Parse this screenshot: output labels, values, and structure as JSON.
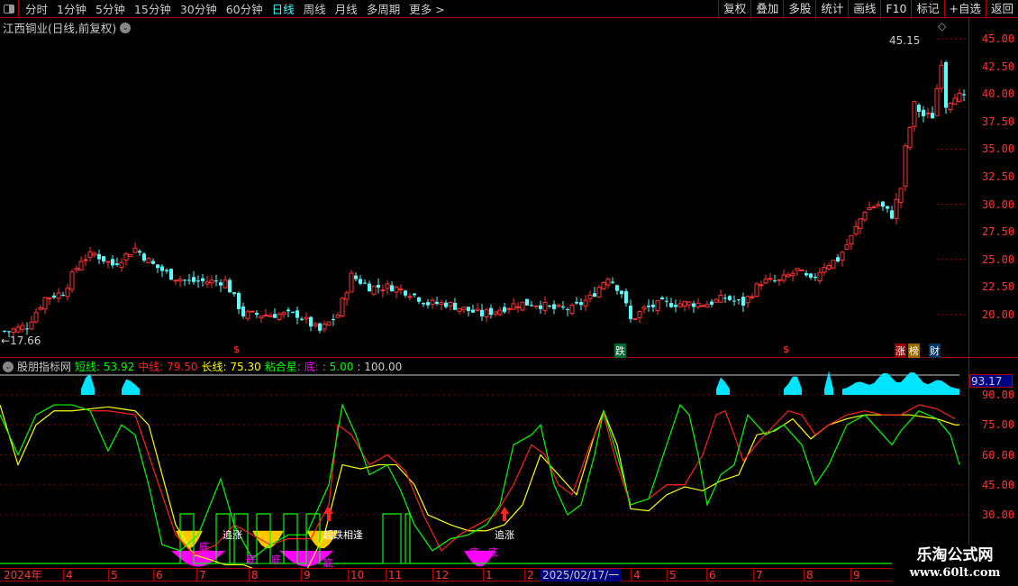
{
  "toolbar": {
    "periods": [
      "分时",
      "1分钟",
      "5分钟",
      "15分钟",
      "30分钟",
      "60分钟",
      "日线",
      "周线",
      "月线",
      "多周期",
      "更多 >"
    ],
    "active": "日线",
    "right_buttons": [
      "复权",
      "叠加",
      "多股",
      "统计",
      "画线",
      "F10",
      "标记",
      "+自选",
      "返回"
    ]
  },
  "stock": {
    "title": "江西铜业(日线,前复权)",
    "high_label": "45.15",
    "low_label": "←17.66"
  },
  "price_axis": [
    "45.00",
    "42.50",
    "40.00",
    "37.50",
    "35.00",
    "32.50",
    "30.00",
    "27.50",
    "25.00",
    "22.50",
    "20.00"
  ],
  "markers": {
    "s1": "$",
    "s2": "$",
    "die": "跌",
    "zhangbang": [
      "涨",
      "榜"
    ],
    "cai": "财"
  },
  "indicator": {
    "name": "股朋指标网",
    "short_label": "短线:",
    "short_value": "53.92",
    "mid_label": "中线:",
    "mid_value": "79.50",
    "long_label": "长线:",
    "long_value": "75.30",
    "star_label": "粘合星:",
    "bottom_label": "底:",
    "bottom_value": ": 5.00",
    "extra_value": ": 100.00",
    "current": "93.17",
    "axis": [
      "90.00",
      "75.00",
      "60.00",
      "45.00",
      "30.00"
    ],
    "signals": {
      "chase": "追涨",
      "bottom": "底",
      "meet": "超跌相逢"
    }
  },
  "date_axis": {
    "labels": [
      "2024年",
      "4",
      "5",
      "6",
      "7",
      "8",
      "9",
      "10",
      "11",
      "12",
      "1",
      "2",
      "4",
      "5",
      "6",
      "7",
      "8",
      "9"
    ],
    "cursor": "2025/02/17/一"
  },
  "watermark": {
    "line1": "乐淘公式网",
    "line2": "www.60lt.com"
  },
  "colors": {
    "up": "#ff3232",
    "down": "#54ffff",
    "short": "#00ff00",
    "mid": "#ff2020",
    "long": "#ffff00",
    "bottom": "#ff00ff",
    "grid": "#b00000"
  },
  "chart_data": {
    "type": "candlestick",
    "price_range": [
      17.5,
      46
    ],
    "close_keypoints": [
      [
        1,
        18.5
      ],
      [
        5,
        19
      ],
      [
        9,
        21.5
      ],
      [
        13,
        22
      ],
      [
        17,
        25
      ],
      [
        20,
        25.5
      ],
      [
        24,
        24.5
      ],
      [
        29,
        26
      ],
      [
        33,
        24.5
      ],
      [
        37,
        23.5
      ],
      [
        41,
        23
      ],
      [
        45,
        23
      ],
      [
        49,
        23
      ],
      [
        53,
        20
      ],
      [
        57,
        20
      ],
      [
        61,
        20
      ],
      [
        65,
        20
      ],
      [
        70,
        18.5
      ],
      [
        74,
        20
      ],
      [
        77,
        23.5
      ],
      [
        81,
        22.5
      ],
      [
        86,
        22.5
      ],
      [
        90,
        22
      ],
      [
        94,
        21
      ],
      [
        98,
        21
      ],
      [
        102,
        20.5
      ],
      [
        106,
        20
      ],
      [
        110,
        20.5
      ],
      [
        114,
        21
      ],
      [
        118,
        21
      ],
      [
        122,
        20.5
      ],
      [
        126,
        20.5
      ],
      [
        130,
        21.5
      ],
      [
        134,
        23.5
      ],
      [
        137,
        22
      ],
      [
        139,
        19.5
      ],
      [
        142,
        20.5
      ],
      [
        146,
        21
      ],
      [
        152,
        21
      ],
      [
        156,
        21
      ],
      [
        160,
        21.5
      ],
      [
        164,
        21
      ],
      [
        168,
        23
      ],
      [
        172,
        23
      ],
      [
        176,
        24
      ],
      [
        179,
        23
      ],
      [
        182,
        24.5
      ],
      [
        185,
        25
      ],
      [
        188,
        27
      ],
      [
        191,
        29.5
      ],
      [
        194,
        30
      ],
      [
        197,
        29
      ],
      [
        199,
        31.5
      ],
      [
        200,
        35
      ],
      [
        202,
        39
      ],
      [
        204,
        38
      ],
      [
        206,
        38
      ],
      [
        208,
        43
      ],
      [
        209,
        39
      ],
      [
        211,
        40
      ],
      [
        213,
        39.5
      ]
    ],
    "indicator_range": [
      0,
      100
    ],
    "short": [
      [
        0,
        80
      ],
      [
        4,
        60
      ],
      [
        8,
        80
      ],
      [
        12,
        85
      ],
      [
        16,
        85
      ],
      [
        20,
        82
      ],
      [
        24,
        62
      ],
      [
        27,
        75
      ],
      [
        30,
        70
      ],
      [
        33,
        45
      ],
      [
        36,
        15
      ],
      [
        40,
        12
      ],
      [
        44,
        20
      ],
      [
        49,
        48
      ],
      [
        52,
        25
      ],
      [
        56,
        8
      ],
      [
        60,
        15
      ],
      [
        64,
        20
      ],
      [
        68,
        20
      ],
      [
        73,
        45
      ],
      [
        76,
        85
      ],
      [
        79,
        70
      ],
      [
        82,
        50
      ],
      [
        86,
        55
      ],
      [
        89,
        42
      ],
      [
        92,
        25
      ],
      [
        96,
        12
      ],
      [
        100,
        18
      ],
      [
        104,
        20
      ],
      [
        108,
        25
      ],
      [
        111,
        35
      ],
      [
        114,
        65
      ],
      [
        118,
        70
      ],
      [
        120,
        75
      ],
      [
        123,
        45
      ],
      [
        126,
        30
      ],
      [
        129,
        35
      ],
      [
        132,
        60
      ],
      [
        134,
        82
      ],
      [
        137,
        60
      ],
      [
        140,
        35
      ],
      [
        144,
        38
      ],
      [
        148,
        65
      ],
      [
        151,
        85
      ],
      [
        153,
        80
      ],
      [
        155,
        60
      ],
      [
        157,
        35
      ],
      [
        160,
        50
      ],
      [
        163,
        55
      ],
      [
        166,
        80
      ],
      [
        170,
        70
      ],
      [
        174,
        75
      ],
      [
        178,
        65
      ],
      [
        181,
        45
      ],
      [
        184,
        55
      ],
      [
        188,
        75
      ],
      [
        192,
        80
      ],
      [
        196,
        70
      ],
      [
        198,
        65
      ],
      [
        200,
        72
      ],
      [
        204,
        82
      ],
      [
        208,
        78
      ],
      [
        211,
        70
      ],
      [
        213,
        55
      ]
    ],
    "mid": [
      [
        20,
        82
      ],
      [
        24,
        82
      ],
      [
        30,
        80
      ],
      [
        33,
        60
      ],
      [
        36,
        40
      ],
      [
        39,
        20
      ],
      [
        43,
        10
      ],
      [
        48,
        15
      ],
      [
        52,
        25
      ],
      [
        56,
        20
      ],
      [
        60,
        15
      ],
      [
        64,
        18
      ],
      [
        69,
        18
      ],
      [
        73,
        35
      ],
      [
        75,
        75
      ],
      [
        78,
        70
      ],
      [
        82,
        55
      ],
      [
        86,
        60
      ],
      [
        90,
        52
      ],
      [
        94,
        30
      ],
      [
        98,
        12
      ],
      [
        102,
        20
      ],
      [
        106,
        25
      ],
      [
        110,
        30
      ],
      [
        114,
        45
      ],
      [
        118,
        65
      ],
      [
        121,
        60
      ],
      [
        124,
        45
      ],
      [
        127,
        40
      ],
      [
        131,
        65
      ],
      [
        134,
        80
      ],
      [
        137,
        55
      ],
      [
        140,
        35
      ],
      [
        144,
        38
      ],
      [
        148,
        45
      ],
      [
        152,
        45
      ],
      [
        156,
        60
      ],
      [
        159,
        80
      ],
      [
        161,
        82
      ],
      [
        163,
        70
      ],
      [
        165,
        57
      ],
      [
        169,
        68
      ],
      [
        172,
        75
      ],
      [
        175,
        82
      ],
      [
        178,
        80
      ],
      [
        181,
        70
      ],
      [
        184,
        75
      ],
      [
        188,
        80
      ],
      [
        192,
        82
      ],
      [
        196,
        80
      ],
      [
        200,
        80
      ],
      [
        204,
        85
      ],
      [
        208,
        83
      ],
      [
        212,
        78
      ]
    ],
    "long": [
      [
        0,
        85
      ],
      [
        4,
        55
      ],
      [
        8,
        75
      ],
      [
        12,
        82
      ],
      [
        16,
        82
      ],
      [
        24,
        84
      ],
      [
        30,
        82
      ],
      [
        33,
        75
      ],
      [
        36,
        50
      ],
      [
        39,
        25
      ],
      [
        43,
        10
      ],
      [
        46,
        8
      ],
      [
        50,
        5
      ],
      [
        54,
        5
      ],
      [
        60,
        0
      ],
      [
        64,
        2
      ],
      [
        68,
        2
      ],
      [
        72,
        20
      ],
      [
        76,
        55
      ],
      [
        80,
        53
      ],
      [
        84,
        55
      ],
      [
        88,
        55
      ],
      [
        92,
        45
      ],
      [
        95,
        30
      ],
      [
        100,
        25
      ],
      [
        104,
        22
      ],
      [
        108,
        22
      ],
      [
        112,
        25
      ],
      [
        116,
        35
      ],
      [
        120,
        60
      ],
      [
        124,
        50
      ],
      [
        128,
        40
      ],
      [
        132,
        70
      ],
      [
        134,
        82
      ],
      [
        137,
        65
      ],
      [
        140,
        33
      ],
      [
        144,
        32
      ],
      [
        148,
        40
      ],
      [
        152,
        44
      ],
      [
        156,
        42
      ],
      [
        160,
        47
      ],
      [
        164,
        50
      ],
      [
        168,
        70
      ],
      [
        172,
        72
      ],
      [
        176,
        78
      ],
      [
        180,
        68
      ],
      [
        184,
        75
      ],
      [
        188,
        78
      ],
      [
        192,
        80
      ],
      [
        198,
        80
      ],
      [
        202,
        80
      ],
      [
        208,
        78
      ],
      [
        212,
        75
      ],
      [
        213,
        75
      ]
    ]
  }
}
